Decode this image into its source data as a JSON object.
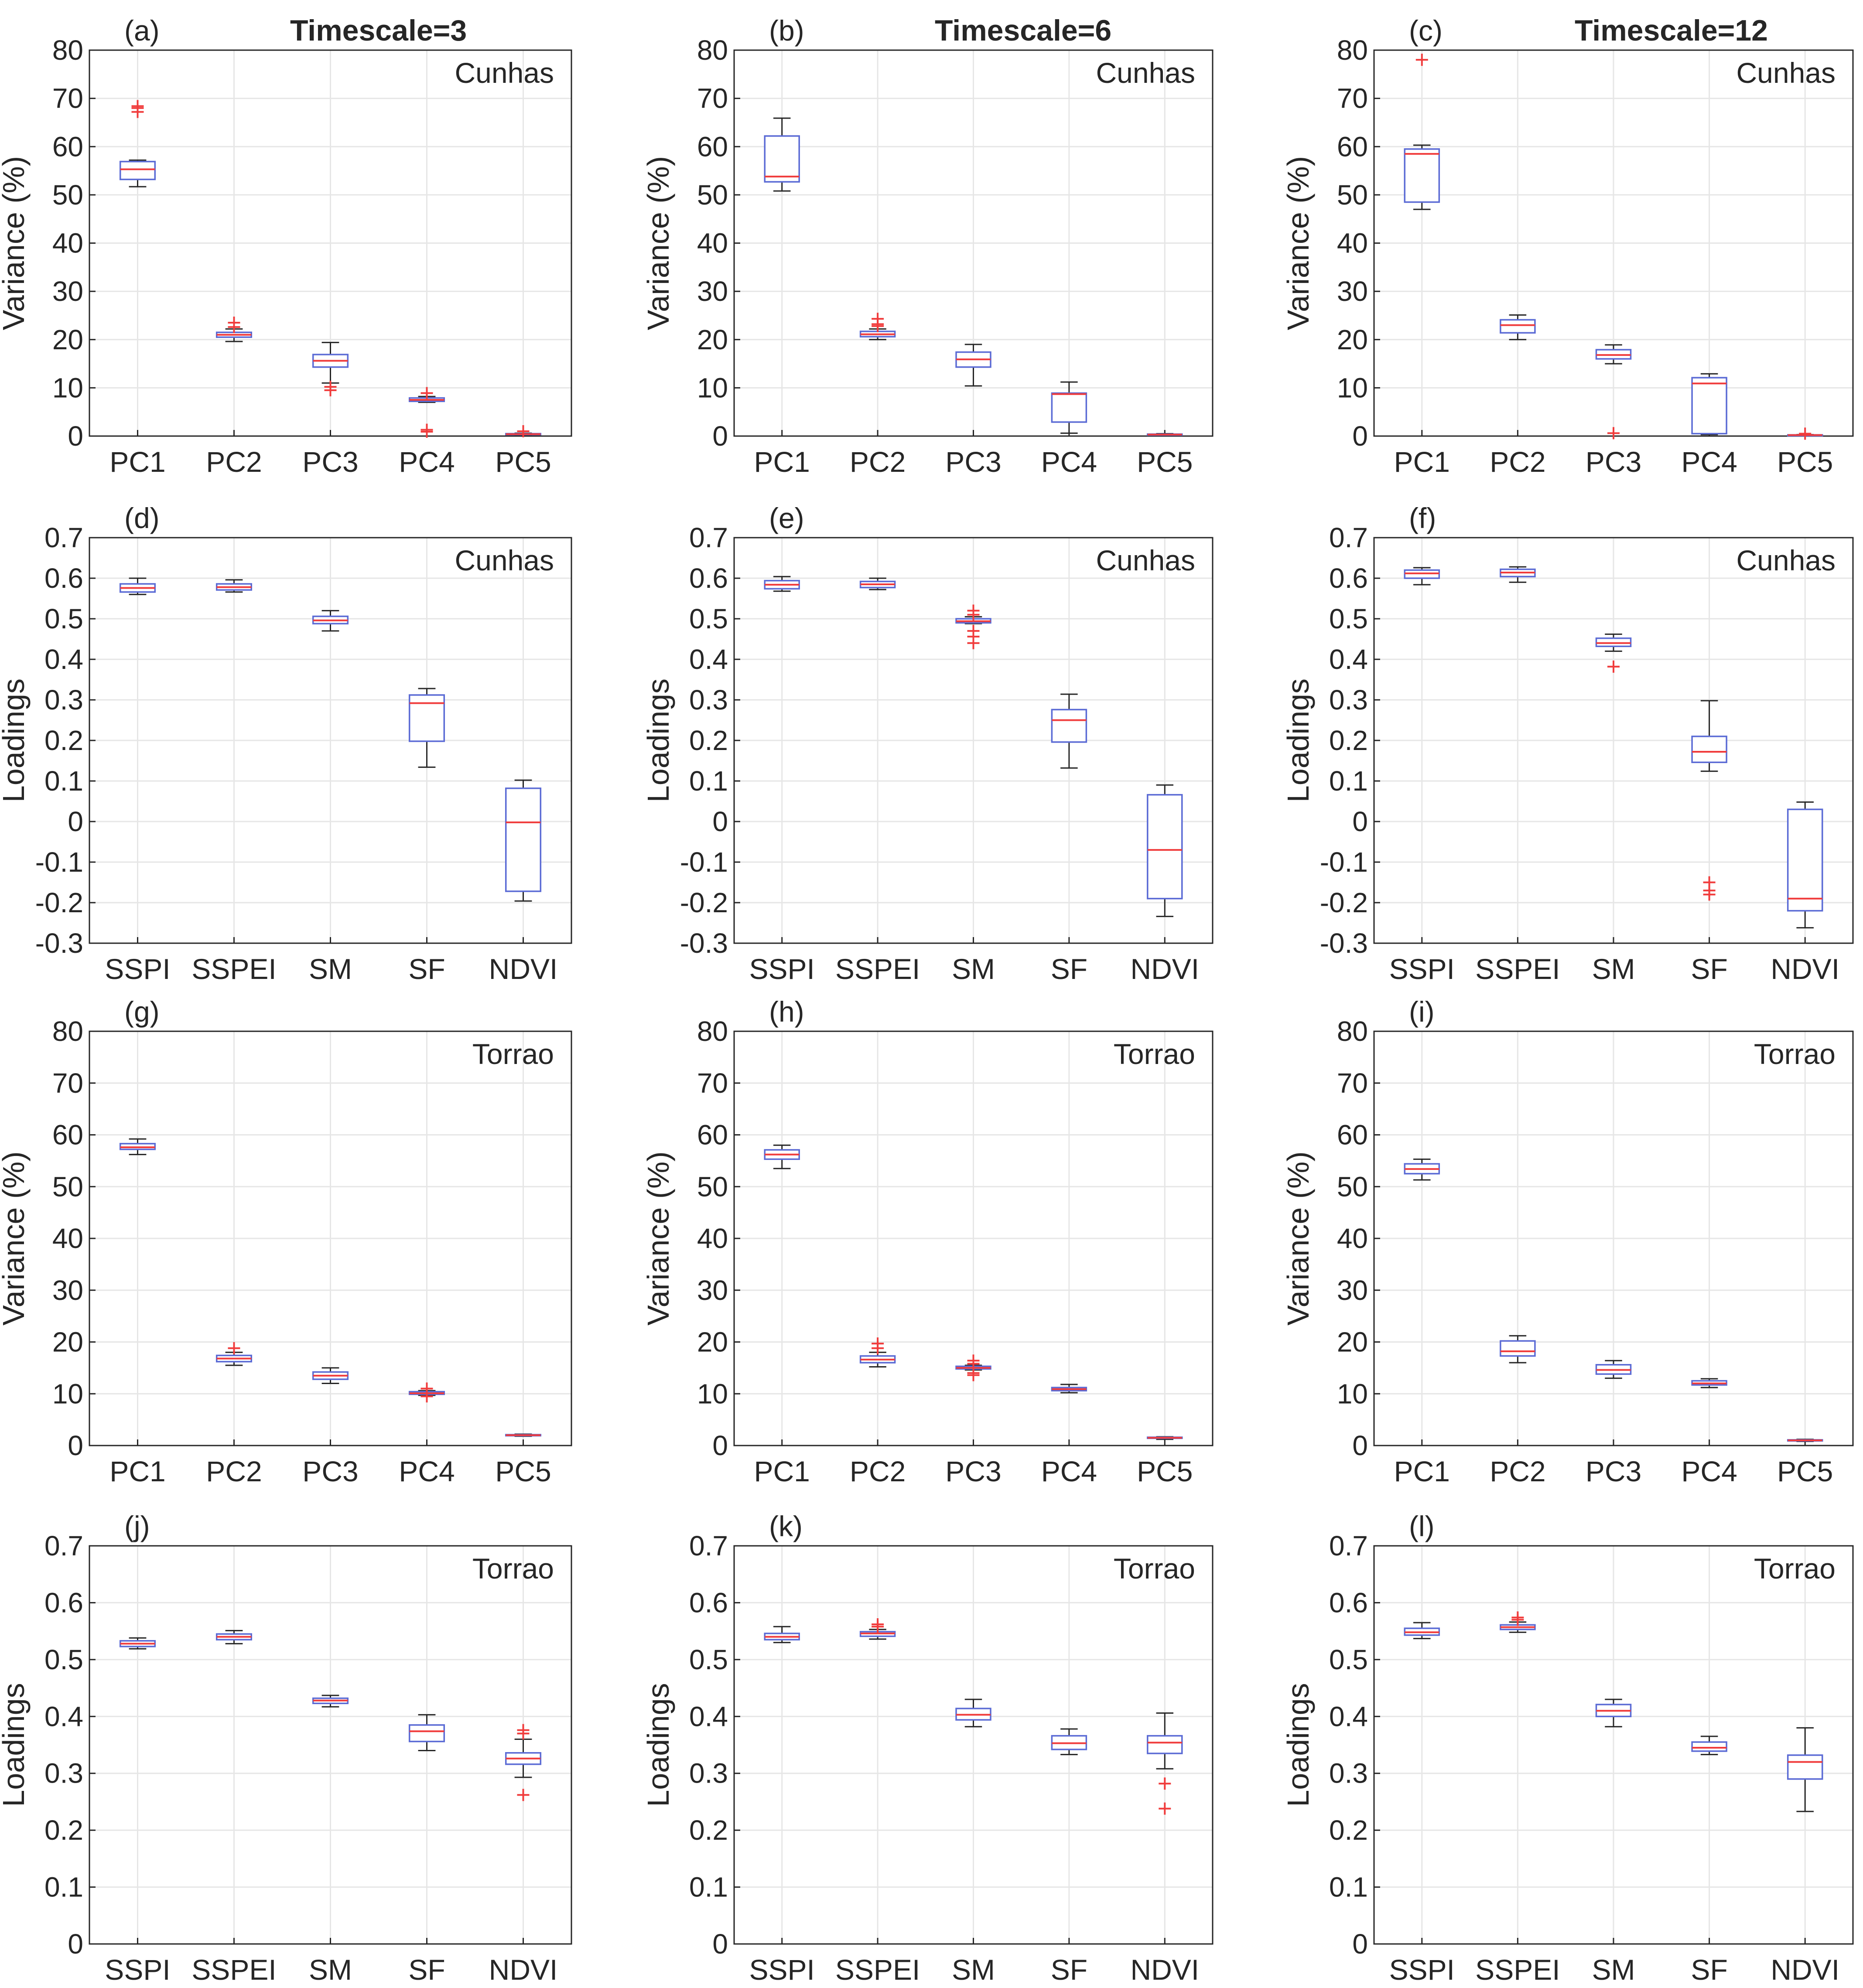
{
  "chart_data": [
    {
      "id": "a",
      "panel_label": "(a)",
      "column_title": "Timescale=3",
      "site": "Cunhas",
      "type": "box",
      "ylabel": "Variance (%)",
      "ylim": [
        0,
        80
      ],
      "yticks": [
        0,
        10,
        20,
        30,
        40,
        50,
        60,
        70,
        80
      ],
      "ytick_labels": [
        "0",
        "10",
        "20",
        "30",
        "40",
        "50",
        "60",
        "70",
        "80"
      ],
      "categories": [
        "PC1",
        "PC2",
        "PC3",
        "PC4",
        "PC5"
      ],
      "boxes": [
        {
          "min": 51.7,
          "q1": 53.2,
          "median": 55.3,
          "q3": 56.9,
          "max": 57.2,
          "outliers": [
            67.2,
            68.0,
            68.4
          ]
        },
        {
          "min": 19.6,
          "q1": 20.5,
          "median": 21.0,
          "q3": 21.5,
          "max": 22.2,
          "outliers": [
            23.5,
            22.6
          ]
        },
        {
          "min": 11.0,
          "q1": 14.3,
          "median": 15.6,
          "q3": 16.9,
          "max": 19.4,
          "outliers": [
            10.2,
            9.5
          ]
        },
        {
          "min": 7.0,
          "q1": 7.2,
          "median": 7.5,
          "q3": 7.9,
          "max": 8.2,
          "outliers": [
            8.9,
            1.3,
            0.9
          ]
        },
        {
          "min": 0.2,
          "q1": 0.3,
          "median": 0.4,
          "q3": 0.5,
          "max": 0.6,
          "outliers": [
            1.0
          ]
        }
      ]
    },
    {
      "id": "b",
      "panel_label": "(b)",
      "column_title": "Timescale=6",
      "site": "Cunhas",
      "type": "box",
      "ylabel": "Variance (%)",
      "ylim": [
        0,
        80
      ],
      "yticks": [
        0,
        10,
        20,
        30,
        40,
        50,
        60,
        70,
        80
      ],
      "ytick_labels": [
        "0",
        "10",
        "20",
        "30",
        "40",
        "50",
        "60",
        "70",
        "80"
      ],
      "categories": [
        "PC1",
        "PC2",
        "PC3",
        "PC4",
        "PC5"
      ],
      "boxes": [
        {
          "min": 50.8,
          "q1": 52.7,
          "median": 53.8,
          "q3": 62.2,
          "max": 65.9,
          "outliers": []
        },
        {
          "min": 20.0,
          "q1": 20.6,
          "median": 21.1,
          "q3": 21.7,
          "max": 22.2,
          "outliers": [
            24.3,
            23.2,
            22.8
          ]
        },
        {
          "min": 10.4,
          "q1": 14.3,
          "median": 15.9,
          "q3": 17.4,
          "max": 19.0,
          "outliers": []
        },
        {
          "min": 0.6,
          "q1": 2.9,
          "median": 8.7,
          "q3": 8.9,
          "max": 11.2,
          "outliers": []
        },
        {
          "min": 0.1,
          "q1": 0.2,
          "median": 0.3,
          "q3": 0.4,
          "max": 0.5,
          "outliers": []
        }
      ]
    },
    {
      "id": "c",
      "panel_label": "(c)",
      "column_title": "Timescale=12",
      "site": "Cunhas",
      "type": "box",
      "ylabel": "Variance (%)",
      "ylim": [
        0,
        80
      ],
      "yticks": [
        0,
        10,
        20,
        30,
        40,
        50,
        60,
        70,
        80
      ],
      "ytick_labels": [
        "0",
        "10",
        "20",
        "30",
        "40",
        "50",
        "60",
        "70",
        "80"
      ],
      "categories": [
        "PC1",
        "PC2",
        "PC3",
        "PC4",
        "PC5"
      ],
      "boxes": [
        {
          "min": 47.0,
          "q1": 48.5,
          "median": 58.5,
          "q3": 59.5,
          "max": 60.3,
          "outliers": [
            78.0
          ]
        },
        {
          "min": 20.0,
          "q1": 21.4,
          "median": 23.0,
          "q3": 24.1,
          "max": 25.1,
          "outliers": []
        },
        {
          "min": 15.0,
          "q1": 16.0,
          "median": 16.8,
          "q3": 17.9,
          "max": 18.9,
          "outliers": [
            0.6
          ]
        },
        {
          "min": 0.3,
          "q1": 0.5,
          "median": 10.9,
          "q3": 12.1,
          "max": 12.9,
          "outliers": []
        },
        {
          "min": 0.1,
          "q1": 0.15,
          "median": 0.2,
          "q3": 0.25,
          "max": 0.3,
          "outliers": [
            0.5
          ]
        }
      ]
    },
    {
      "id": "d",
      "panel_label": "(d)",
      "site": "Cunhas",
      "type": "box",
      "ylabel": "Loadings",
      "ylim": [
        -0.3,
        0.7
      ],
      "yticks": [
        -0.3,
        -0.2,
        -0.1,
        0,
        0.1,
        0.2,
        0.3,
        0.4,
        0.5,
        0.6,
        0.7
      ],
      "ytick_labels": [
        "-0.3",
        "-0.2",
        "-0.1",
        "0",
        "0.1",
        "0.2",
        "0.3",
        "0.4",
        "0.5",
        "0.6",
        "0.7"
      ],
      "categories": [
        "SSPI",
        "SSPEI",
        "SM",
        "SF",
        "NDVI"
      ],
      "boxes": [
        {
          "min": 0.56,
          "q1": 0.566,
          "median": 0.576,
          "q3": 0.586,
          "max": 0.6,
          "outliers": []
        },
        {
          "min": 0.566,
          "q1": 0.571,
          "median": 0.578,
          "q3": 0.586,
          "max": 0.596,
          "outliers": []
        },
        {
          "min": 0.47,
          "q1": 0.488,
          "median": 0.496,
          "q3": 0.506,
          "max": 0.52,
          "outliers": []
        },
        {
          "min": 0.134,
          "q1": 0.198,
          "median": 0.292,
          "q3": 0.312,
          "max": 0.328,
          "outliers": []
        },
        {
          "min": -0.196,
          "q1": -0.172,
          "median": -0.002,
          "q3": 0.082,
          "max": 0.102,
          "outliers": []
        }
      ]
    },
    {
      "id": "e",
      "panel_label": "(e)",
      "site": "Cunhas",
      "type": "box",
      "ylabel": "Loadings",
      "ylim": [
        -0.3,
        0.7
      ],
      "yticks": [
        -0.3,
        -0.2,
        -0.1,
        0,
        0.1,
        0.2,
        0.3,
        0.4,
        0.5,
        0.6,
        0.7
      ],
      "ytick_labels": [
        "-0.3",
        "-0.2",
        "-0.1",
        "0",
        "0.1",
        "0.2",
        "0.3",
        "0.4",
        "0.5",
        "0.6",
        "0.7"
      ],
      "categories": [
        "SSPI",
        "SSPEI",
        "SM",
        "SF",
        "NDVI"
      ],
      "boxes": [
        {
          "min": 0.568,
          "q1": 0.574,
          "median": 0.584,
          "q3": 0.594,
          "max": 0.604,
          "outliers": []
        },
        {
          "min": 0.572,
          "q1": 0.577,
          "median": 0.585,
          "q3": 0.592,
          "max": 0.6,
          "outliers": []
        },
        {
          "min": 0.488,
          "q1": 0.49,
          "median": 0.494,
          "q3": 0.5,
          "max": 0.505,
          "outliers": [
            0.52,
            0.51,
            0.47,
            0.456,
            0.44
          ]
        },
        {
          "min": 0.132,
          "q1": 0.196,
          "median": 0.25,
          "q3": 0.276,
          "max": 0.314,
          "outliers": []
        },
        {
          "min": -0.234,
          "q1": -0.19,
          "median": -0.07,
          "q3": 0.066,
          "max": 0.09,
          "outliers": []
        }
      ]
    },
    {
      "id": "f",
      "panel_label": "(f)",
      "site": "Cunhas",
      "type": "box",
      "ylabel": "Loadings",
      "ylim": [
        -0.3,
        0.7
      ],
      "yticks": [
        -0.3,
        -0.2,
        -0.1,
        0,
        0.1,
        0.2,
        0.3,
        0.4,
        0.5,
        0.6,
        0.7
      ],
      "ytick_labels": [
        "-0.3",
        "-0.2",
        "-0.1",
        "0",
        "0.1",
        "0.2",
        "0.3",
        "0.4",
        "0.5",
        "0.6",
        "0.7"
      ],
      "categories": [
        "SSPI",
        "SSPEI",
        "SM",
        "SF",
        "NDVI"
      ],
      "boxes": [
        {
          "min": 0.584,
          "q1": 0.6,
          "median": 0.612,
          "q3": 0.62,
          "max": 0.626,
          "outliers": []
        },
        {
          "min": 0.59,
          "q1": 0.604,
          "median": 0.614,
          "q3": 0.622,
          "max": 0.628,
          "outliers": []
        },
        {
          "min": 0.42,
          "q1": 0.432,
          "median": 0.44,
          "q3": 0.452,
          "max": 0.462,
          "outliers": [
            0.382
          ]
        },
        {
          "min": 0.124,
          "q1": 0.146,
          "median": 0.172,
          "q3": 0.21,
          "max": 0.298,
          "outliers": [
            -0.15,
            -0.17,
            -0.18
          ]
        },
        {
          "min": -0.262,
          "q1": -0.22,
          "median": -0.19,
          "q3": 0.03,
          "max": 0.048,
          "outliers": []
        }
      ]
    },
    {
      "id": "g",
      "panel_label": "(g)",
      "site": "Torrao",
      "type": "box",
      "ylabel": "Variance (%)",
      "ylim": [
        0,
        80
      ],
      "yticks": [
        0,
        10,
        20,
        30,
        40,
        50,
        60,
        70,
        80
      ],
      "ytick_labels": [
        "0",
        "10",
        "20",
        "30",
        "40",
        "50",
        "60",
        "70",
        "80"
      ],
      "categories": [
        "PC1",
        "PC2",
        "PC3",
        "PC4",
        "PC5"
      ],
      "boxes": [
        {
          "min": 56.2,
          "q1": 57.2,
          "median": 57.6,
          "q3": 58.3,
          "max": 59.2,
          "outliers": []
        },
        {
          "min": 15.5,
          "q1": 16.2,
          "median": 16.8,
          "q3": 17.4,
          "max": 18.0,
          "outliers": [
            18.8
          ]
        },
        {
          "min": 12.0,
          "q1": 12.8,
          "median": 13.5,
          "q3": 14.2,
          "max": 15.0,
          "outliers": []
        },
        {
          "min": 9.7,
          "q1": 9.9,
          "median": 10.1,
          "q3": 10.4,
          "max": 10.6,
          "outliers": [
            11.0,
            9.5
          ]
        },
        {
          "min": 1.8,
          "q1": 1.9,
          "median": 2.0,
          "q3": 2.1,
          "max": 2.2,
          "outliers": []
        }
      ]
    },
    {
      "id": "h",
      "panel_label": "(h)",
      "site": "Torrao",
      "type": "box",
      "ylabel": "Variance (%)",
      "ylim": [
        0,
        80
      ],
      "yticks": [
        0,
        10,
        20,
        30,
        40,
        50,
        60,
        70,
        80
      ],
      "ytick_labels": [
        "0",
        "10",
        "20",
        "30",
        "40",
        "50",
        "60",
        "70",
        "80"
      ],
      "categories": [
        "PC1",
        "PC2",
        "PC3",
        "PC4",
        "PC5"
      ],
      "boxes": [
        {
          "min": 53.5,
          "q1": 55.3,
          "median": 56.2,
          "q3": 57.1,
          "max": 58.0,
          "outliers": []
        },
        {
          "min": 15.2,
          "q1": 16.0,
          "median": 16.6,
          "q3": 17.3,
          "max": 18.0,
          "outliers": [
            19.7,
            18.8
          ]
        },
        {
          "min": 14.6,
          "q1": 14.8,
          "median": 15.0,
          "q3": 15.3,
          "max": 15.5,
          "outliers": [
            16.4,
            15.8,
            14.0,
            13.6
          ]
        },
        {
          "min": 10.2,
          "q1": 10.6,
          "median": 10.9,
          "q3": 11.2,
          "max": 11.8,
          "outliers": []
        },
        {
          "min": 1.2,
          "q1": 1.4,
          "median": 1.5,
          "q3": 1.6,
          "max": 1.7,
          "outliers": []
        }
      ]
    },
    {
      "id": "i",
      "panel_label": "(i)",
      "site": "Torrao",
      "type": "box",
      "ylabel": "Variance (%)",
      "ylim": [
        0,
        80
      ],
      "yticks": [
        0,
        10,
        20,
        30,
        40,
        50,
        60,
        70,
        80
      ],
      "ytick_labels": [
        "0",
        "10",
        "20",
        "30",
        "40",
        "50",
        "60",
        "70",
        "80"
      ],
      "categories": [
        "PC1",
        "PC2",
        "PC3",
        "PC4",
        "PC5"
      ],
      "boxes": [
        {
          "min": 51.3,
          "q1": 52.5,
          "median": 53.4,
          "q3": 54.4,
          "max": 55.3,
          "outliers": []
        },
        {
          "min": 16.0,
          "q1": 17.3,
          "median": 18.2,
          "q3": 20.2,
          "max": 21.2,
          "outliers": []
        },
        {
          "min": 13.0,
          "q1": 13.8,
          "median": 14.6,
          "q3": 15.6,
          "max": 16.4,
          "outliers": []
        },
        {
          "min": 11.2,
          "q1": 11.7,
          "median": 12.0,
          "q3": 12.5,
          "max": 12.9,
          "outliers": []
        },
        {
          "min": 0.8,
          "q1": 0.9,
          "median": 1.0,
          "q3": 1.1,
          "max": 1.2,
          "outliers": []
        }
      ]
    },
    {
      "id": "j",
      "panel_label": "(j)",
      "site": "Torrao",
      "type": "box",
      "ylabel": "Loadings",
      "ylim": [
        0,
        0.7
      ],
      "yticks": [
        0,
        0.1,
        0.2,
        0.3,
        0.4,
        0.5,
        0.6,
        0.7
      ],
      "ytick_labels": [
        "0",
        "0.1",
        "0.2",
        "0.3",
        "0.4",
        "0.5",
        "0.6",
        "0.7"
      ],
      "categories": [
        "SSPI",
        "SSPEI",
        "SM",
        "SF",
        "NDVI"
      ],
      "boxes": [
        {
          "min": 0.519,
          "q1": 0.523,
          "median": 0.528,
          "q3": 0.533,
          "max": 0.538,
          "outliers": []
        },
        {
          "min": 0.528,
          "q1": 0.535,
          "median": 0.54,
          "q3": 0.545,
          "max": 0.551,
          "outliers": []
        },
        {
          "min": 0.417,
          "q1": 0.423,
          "median": 0.428,
          "q3": 0.432,
          "max": 0.437,
          "outliers": []
        },
        {
          "min": 0.34,
          "q1": 0.356,
          "median": 0.374,
          "q3": 0.385,
          "max": 0.403,
          "outliers": []
        },
        {
          "min": 0.293,
          "q1": 0.316,
          "median": 0.326,
          "q3": 0.336,
          "max": 0.36,
          "outliers": [
            0.376,
            0.37,
            0.262
          ]
        }
      ]
    },
    {
      "id": "k",
      "panel_label": "(k)",
      "site": "Torrao",
      "type": "box",
      "ylabel": "Loadings",
      "ylim": [
        0,
        0.7
      ],
      "yticks": [
        0,
        0.1,
        0.2,
        0.3,
        0.4,
        0.5,
        0.6,
        0.7
      ],
      "ytick_labels": [
        "0",
        "0.1",
        "0.2",
        "0.3",
        "0.4",
        "0.5",
        "0.6",
        "0.7"
      ],
      "categories": [
        "SSPI",
        "SSPEI",
        "SM",
        "SF",
        "NDVI"
      ],
      "boxes": [
        {
          "min": 0.53,
          "q1": 0.535,
          "median": 0.54,
          "q3": 0.546,
          "max": 0.558,
          "outliers": []
        },
        {
          "min": 0.536,
          "q1": 0.541,
          "median": 0.546,
          "q3": 0.549,
          "max": 0.553,
          "outliers": [
            0.562,
            0.558
          ]
        },
        {
          "min": 0.382,
          "q1": 0.394,
          "median": 0.403,
          "q3": 0.414,
          "max": 0.43,
          "outliers": []
        },
        {
          "min": 0.333,
          "q1": 0.342,
          "median": 0.353,
          "q3": 0.366,
          "max": 0.378,
          "outliers": []
        },
        {
          "min": 0.308,
          "q1": 0.335,
          "median": 0.354,
          "q3": 0.366,
          "max": 0.406,
          "outliers": [
            0.282,
            0.238
          ]
        }
      ]
    },
    {
      "id": "l",
      "panel_label": "(l)",
      "site": "Torrao",
      "type": "box",
      "ylabel": "Loadings",
      "ylim": [
        0,
        0.7
      ],
      "yticks": [
        0,
        0.1,
        0.2,
        0.3,
        0.4,
        0.5,
        0.6,
        0.7
      ],
      "ytick_labels": [
        "0",
        "0.1",
        "0.2",
        "0.3",
        "0.4",
        "0.5",
        "0.6",
        "0.7"
      ],
      "categories": [
        "SSPI",
        "SSPEI",
        "SM",
        "SF",
        "NDVI"
      ],
      "boxes": [
        {
          "min": 0.537,
          "q1": 0.543,
          "median": 0.548,
          "q3": 0.555,
          "max": 0.565,
          "outliers": []
        },
        {
          "min": 0.548,
          "q1": 0.553,
          "median": 0.557,
          "q3": 0.561,
          "max": 0.566,
          "outliers": [
            0.574,
            0.57
          ]
        },
        {
          "min": 0.382,
          "q1": 0.4,
          "median": 0.41,
          "q3": 0.421,
          "max": 0.43,
          "outliers": []
        },
        {
          "min": 0.333,
          "q1": 0.339,
          "median": 0.345,
          "q3": 0.355,
          "max": 0.365,
          "outliers": []
        },
        {
          "min": 0.233,
          "q1": 0.29,
          "median": 0.32,
          "q3": 0.332,
          "max": 0.38,
          "outliers": []
        }
      ]
    }
  ],
  "colors": {
    "box": "#5b6bd5",
    "median": "#f03c3c",
    "whisker": "#262626",
    "outlier": "#f03c3c",
    "grid": "#e6e6e6",
    "axis": "#262626"
  }
}
